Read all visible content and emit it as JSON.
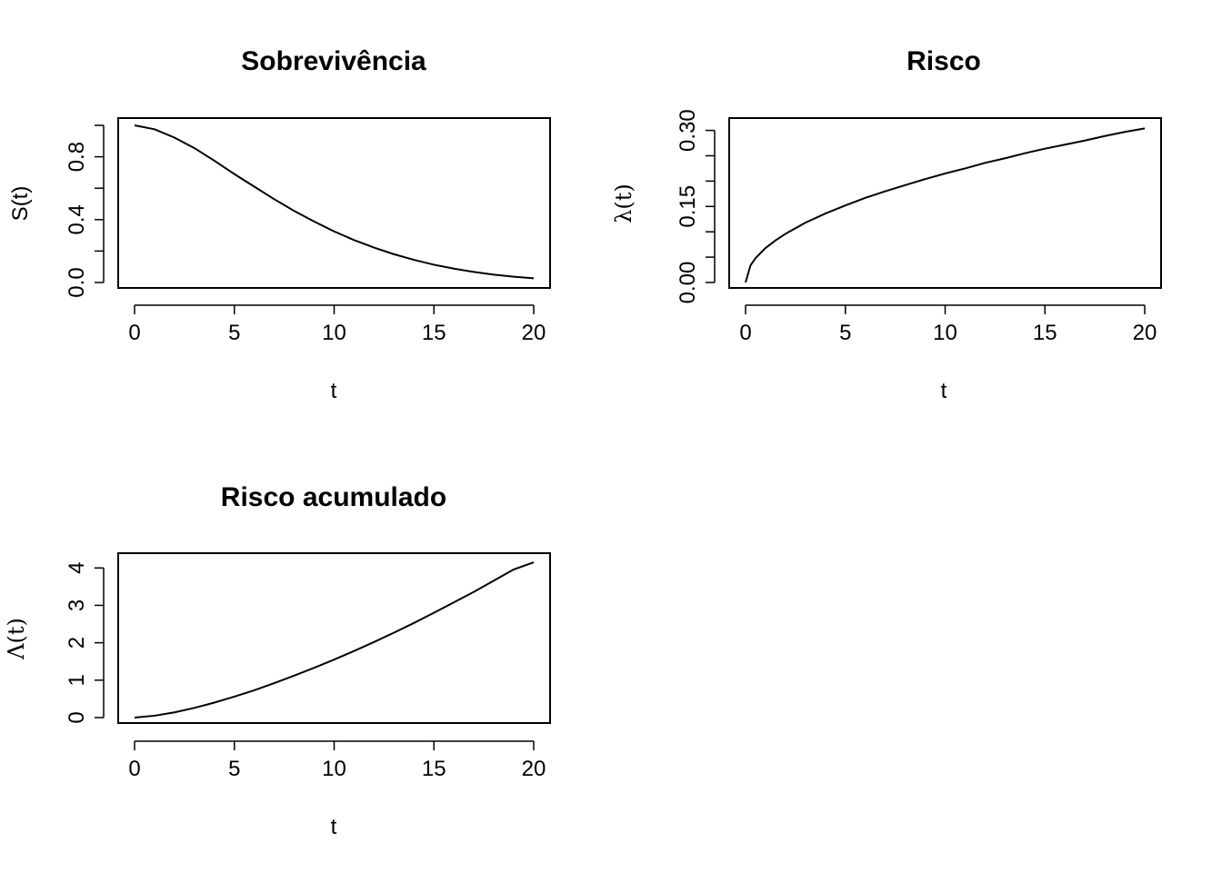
{
  "chart_data": [
    {
      "type": "line",
      "title": "Sobrevivência",
      "xlabel": "t",
      "ylabel": "S(t)",
      "xlim": [
        0,
        20
      ],
      "ylim": [
        0,
        1
      ],
      "xticks": [
        "0",
        "5",
        "10",
        "15",
        "20"
      ],
      "yticks": [
        "0.0",
        "0.4",
        "0.8"
      ],
      "yticks_unlabeled": [
        0.2,
        0.6,
        1.0
      ],
      "grid": false,
      "x": [
        0,
        1,
        2,
        3,
        4,
        5,
        6,
        7,
        8,
        9,
        10,
        11,
        12,
        13,
        14,
        15,
        16,
        17,
        18,
        19,
        20
      ],
      "y": [
        1.0,
        0.975,
        0.922,
        0.855,
        0.775,
        0.69,
        0.61,
        0.53,
        0.455,
        0.388,
        0.325,
        0.27,
        0.222,
        0.18,
        0.144,
        0.113,
        0.088,
        0.067,
        0.05,
        0.037,
        0.027
      ]
    },
    {
      "type": "line",
      "title": "Risco",
      "xlabel": "t",
      "ylabel": "λ(t)",
      "xlim": [
        0,
        20
      ],
      "ylim": [
        0,
        0.31
      ],
      "xticks": [
        "0",
        "5",
        "10",
        "15",
        "20"
      ],
      "yticks": [
        "0.00",
        "0.15",
        "0.30"
      ],
      "yticks_unlabeled": [
        0.05,
        0.1,
        0.2,
        0.25
      ],
      "grid": false,
      "x": [
        0,
        0.25,
        0.5,
        1,
        1.5,
        2,
        3,
        4,
        5,
        6,
        7,
        8,
        9,
        10,
        11,
        12,
        13,
        14,
        15,
        16,
        17,
        18,
        19,
        20
      ],
      "y": [
        0.0,
        0.034,
        0.048,
        0.068,
        0.083,
        0.096,
        0.118,
        0.136,
        0.152,
        0.167,
        0.18,
        0.192,
        0.204,
        0.215,
        0.225,
        0.236,
        0.245,
        0.255,
        0.264,
        0.272,
        0.28,
        0.289,
        0.297,
        0.304
      ]
    },
    {
      "type": "line",
      "title": "Risco acumulado",
      "xlabel": "t",
      "ylabel": "Λ(t)",
      "xlim": [
        0,
        20
      ],
      "ylim": [
        0,
        4.2
      ],
      "xticks": [
        "0",
        "5",
        "10",
        "15",
        "20"
      ],
      "yticks": [
        "0",
        "1",
        "2",
        "3",
        "4"
      ],
      "grid": false,
      "x": [
        0,
        1,
        2,
        3,
        4,
        5,
        6,
        7,
        8,
        9,
        10,
        11,
        12,
        13,
        14,
        15,
        16,
        17,
        18,
        19,
        20
      ],
      "y": [
        0.0,
        0.05,
        0.14,
        0.26,
        0.4,
        0.56,
        0.73,
        0.92,
        1.12,
        1.33,
        1.55,
        1.78,
        2.02,
        2.27,
        2.53,
        2.8,
        3.08,
        3.36,
        3.66,
        3.96,
        4.15
      ]
    }
  ]
}
